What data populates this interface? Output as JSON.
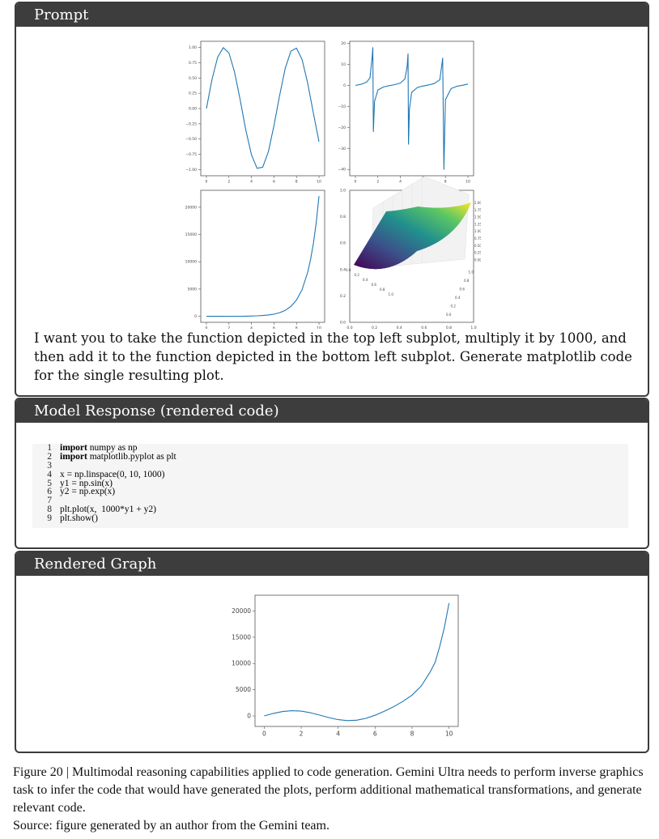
{
  "prompt_box": {
    "title": "Prompt",
    "text": "I want you to take the function depicted in the top left subplot, multiply it by 1000, and then add it to the function depicted in the bottom left subplot. Generate matplotlib code for the single resulting plot."
  },
  "response_box": {
    "title": "Model Response (rendered code)",
    "code_lines": [
      {
        "n": "1",
        "kw": "import",
        "rest": " numpy as np"
      },
      {
        "n": "2",
        "kw": "import",
        "rest": " matplotlib.pyplot as plt"
      },
      {
        "n": "3",
        "kw": "",
        "rest": ""
      },
      {
        "n": "4",
        "kw": "",
        "rest": "x = np.linspace(0, 10, 1000)"
      },
      {
        "n": "5",
        "kw": "",
        "rest": "y1 = np.sin(x)"
      },
      {
        "n": "6",
        "kw": "",
        "rest": "y2 = np.exp(x)"
      },
      {
        "n": "7",
        "kw": "",
        "rest": ""
      },
      {
        "n": "8",
        "kw": "",
        "rest": "plt.plot(x,  1000*y1 + y2)"
      },
      {
        "n": "9",
        "kw": "",
        "rest": "plt.show()"
      }
    ]
  },
  "graph_box": {
    "title": "Rendered Graph"
  },
  "caption": {
    "text": "Figure 20 | Multimodal reasoning capabilities applied to code generation. Gemini Ultra needs to perform inverse graphics task to infer the code that would have generated the plots, perform additional mathematical transformations, and generate relevant code.",
    "source": "Source: figure generated by an author from the Gemini team."
  },
  "colors": {
    "line": "#1f77b4",
    "header": "#3d3d3d"
  },
  "chart_data": [
    {
      "id": "top-left",
      "type": "line",
      "xlim": [
        -0.5,
        10.5
      ],
      "ylim": [
        -1.1,
        1.1
      ],
      "xticks": [
        "0",
        "2",
        "4",
        "6",
        "8",
        "10"
      ],
      "xtick_values": [
        0,
        2,
        4,
        6,
        8,
        10
      ],
      "yticks": [
        "1.00",
        "0.75",
        "0.50",
        "0.25",
        "0.00",
        "−0.25",
        "−0.50",
        "−0.75",
        "−1.00"
      ],
      "ytick_values": [
        1,
        0.75,
        0.5,
        0.25,
        0,
        -0.25,
        -0.5,
        -0.75,
        -1
      ],
      "x": [
        0,
        0.5,
        1,
        1.5,
        2,
        2.5,
        3,
        3.5,
        4,
        4.5,
        5,
        5.5,
        6,
        6.5,
        7,
        7.5,
        8,
        8.5,
        9,
        9.5,
        10
      ],
      "y": [
        0,
        0.479,
        0.841,
        0.997,
        0.909,
        0.598,
        0.141,
        -0.351,
        -0.757,
        -0.978,
        -0.959,
        -0.706,
        -0.279,
        0.215,
        0.657,
        0.938,
        0.989,
        0.798,
        0.412,
        -0.075,
        -0.544
      ]
    },
    {
      "id": "top-right",
      "type": "line",
      "xlim": [
        -0.5,
        10.5
      ],
      "ylim": [
        -43,
        21
      ],
      "xticks": [
        "0",
        "2",
        "4",
        "6",
        "8",
        "10"
      ],
      "xtick_values": [
        0,
        2,
        4,
        6,
        8,
        10
      ],
      "yticks": [
        "20",
        "10",
        "0",
        "−10",
        "−20",
        "−30",
        "−40"
      ],
      "ytick_values": [
        20,
        10,
        0,
        -10,
        -20,
        -30,
        -40
      ],
      "x": [
        0,
        0.5,
        1,
        1.3,
        1.5,
        1.55,
        1.6,
        1.7,
        2,
        2.5,
        3,
        3.5,
        4,
        4.4,
        4.6,
        4.68,
        4.72,
        4.8,
        5,
        5.5,
        6,
        6.5,
        7,
        7.5,
        7.75,
        7.86,
        8,
        8.5,
        9,
        9.5,
        10
      ],
      "y": [
        0,
        0.546,
        1.557,
        3.6,
        14.1,
        18,
        -22,
        -7.7,
        -2.19,
        -0.75,
        -0.14,
        0.37,
        1.16,
        3.1,
        8.9,
        15,
        -28,
        -11.4,
        -3.38,
        -0.99,
        -0.29,
        0.22,
        0.87,
        2.71,
        13,
        -40,
        -6.8,
        -1.5,
        -0.45,
        0.07,
        0.65
      ]
    },
    {
      "id": "bottom-left",
      "type": "line",
      "xlim": [
        -0.5,
        10.5
      ],
      "ylim": [
        -1100,
        23100
      ],
      "xticks": [
        "0",
        "2",
        "4",
        "6",
        "8",
        "10"
      ],
      "xtick_values": [
        0,
        2,
        4,
        6,
        8,
        10
      ],
      "yticks": [
        "20000",
        "15000",
        "10000",
        "5000",
        "0"
      ],
      "ytick_values": [
        20000,
        15000,
        10000,
        5000,
        0
      ],
      "x": [
        0,
        0.5,
        1,
        1.5,
        2,
        2.5,
        3,
        3.5,
        4,
        4.5,
        5,
        5.5,
        6,
        6.5,
        7,
        7.5,
        8,
        8.5,
        9,
        9.25,
        9.5,
        9.75,
        10
      ],
      "y": [
        1,
        1.65,
        2.72,
        4.48,
        7.39,
        12.18,
        20.09,
        33.12,
        54.6,
        90,
        148.4,
        244.7,
        403.4,
        665.1,
        1096.6,
        1808,
        2981,
        4914.8,
        8103.1,
        10404,
        13359.7,
        17154,
        22026.5
      ]
    },
    {
      "id": "bottom-right",
      "type": "surface3d",
      "xlim": [
        0,
        1
      ],
      "ylim": [
        0,
        1
      ],
      "xticks": [
        "0.0",
        "0.2",
        "0.4",
        "0.6",
        "0.8",
        "1.0"
      ],
      "yticks": [
        "1.0",
        "0.8",
        "0.6",
        "0.4",
        "0.2",
        "0.0"
      ],
      "x3_ticks": [
        "0.0",
        "0.2",
        "0.4",
        "0.6",
        "0.8",
        "1.0"
      ],
      "y3_ticks": [
        "0.0",
        "0.2",
        "0.4",
        "0.6",
        "0.8",
        "1.0"
      ],
      "z3_ticks": [
        "2.00",
        "1.75",
        "1.50",
        "1.25",
        "1.00",
        "0.75",
        "0.50",
        "0.25",
        "0.00"
      ],
      "zlim": [
        0,
        2
      ],
      "colormap": "viridis"
    },
    {
      "id": "rendered",
      "type": "line",
      "xlim": [
        -0.5,
        10.5
      ],
      "ylim": [
        -2000,
        23000
      ],
      "xticks": [
        "0",
        "2",
        "4",
        "6",
        "8",
        "10"
      ],
      "xtick_values": [
        0,
        2,
        4,
        6,
        8,
        10
      ],
      "yticks": [
        "20000",
        "15000",
        "10000",
        "5000",
        "0"
      ],
      "ytick_values": [
        20000,
        15000,
        10000,
        5000,
        0
      ],
      "x": [
        0,
        0.5,
        1,
        1.5,
        2,
        2.5,
        3,
        3.5,
        4,
        4.5,
        5,
        5.5,
        6,
        6.5,
        7,
        7.5,
        8,
        8.5,
        9,
        9.25,
        9.5,
        9.75,
        10
      ],
      "y": [
        1,
        480.6,
        843.7,
        1001.5,
        916.4,
        610.2,
        161.1,
        -317.9,
        -702.4,
        -888,
        -810.6,
        -461.3,
        124.4,
        880.1,
        1753.6,
        2746,
        3970,
        5713,
        8515,
        10228,
        13285,
        16835,
        21483
      ]
    }
  ]
}
